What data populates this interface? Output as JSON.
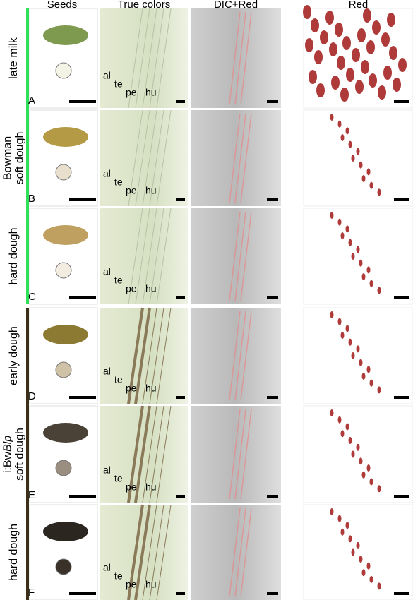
{
  "header": {
    "columns": [
      "Seeds",
      "True colors",
      "DIC+Red",
      "Red"
    ]
  },
  "rows": [
    {
      "lines": [
        [
          {
            "text": "late milk"
          }
        ]
      ],
      "letter": "A"
    },
    {
      "lines": [
        [
          {
            "text": "Bowman"
          }
        ],
        [
          {
            "text": "soft dough"
          }
        ]
      ],
      "letter": "B"
    },
    {
      "lines": [
        [
          {
            "text": "hard dough"
          }
        ]
      ],
      "letter": "C"
    },
    {
      "lines": [
        [
          {
            "text": "early dough"
          }
        ]
      ],
      "letter": "D"
    },
    {
      "lines": [
        [
          {
            "text": "i:Bw"
          },
          {
            "text": "Blp",
            "italic": true
          }
        ],
        [
          {
            "text": "soft dough"
          }
        ]
      ],
      "letter": "E"
    },
    {
      "lines": [
        [
          {
            "text": "hard dough"
          }
        ]
      ],
      "letter": "F"
    }
  ],
  "tissues": [
    "al",
    "te",
    "pe",
    "hu"
  ]
}
